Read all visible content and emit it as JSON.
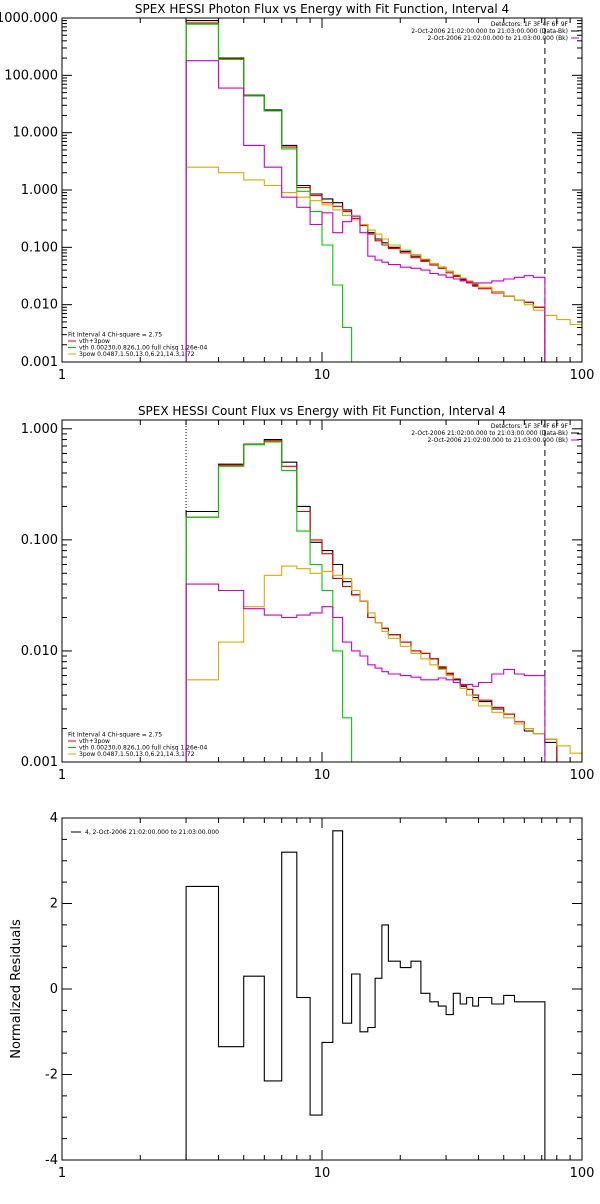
{
  "chart_data": [
    {
      "type": "line",
      "step": true,
      "log_x": true,
      "log_y": true,
      "title": "SPEX HESSI Photon Flux vs Energy with Fit Function, Interval 4",
      "xlim": [
        1,
        100
      ],
      "ylim": [
        0.001,
        1000
      ],
      "x_ticks": [
        1,
        10,
        100
      ],
      "x_tick_labels": [
        "1",
        "10",
        "100"
      ],
      "y_ticks": [
        0.001,
        0.01,
        0.1,
        1,
        10,
        100,
        1000
      ],
      "y_tick_labels": [
        "0.001",
        "0.010",
        "0.100",
        "1.000",
        "10.000",
        "100.000",
        "1000.000"
      ],
      "vlines": [
        {
          "x": 3,
          "style": "dotted"
        },
        {
          "x": 72,
          "style": "dashed"
        }
      ],
      "legend_top_right": [
        {
          "text": "Detectors: 1F 3F 4F 6F 9F",
          "color": ""
        },
        {
          "text": "2-Oct-2006 21:02:00.000 to 21:03:00.000 (Data-Bk)",
          "color": "#000000"
        },
        {
          "text": "2-Oct-2006 21:02:00.000 to 21:03:00.000 (Bk)",
          "color": "#cc00cc"
        }
      ],
      "legend_bottom_left": [
        {
          "text": "Fit Interval 4   Chi-square = 2.75",
          "color": "#000000"
        },
        {
          "text": "vth+3pow",
          "color": "#e00000"
        },
        {
          "text": "vth 0.00230,0.826,1.00  full chisq 1.26e-04",
          "color": "#00cc00"
        },
        {
          "text": "3pow 0.0487,1.50,13.0,6.21,14.3,1.72",
          "color": "#ddaa00"
        }
      ],
      "series": [
        {
          "color": "#000000",
          "edges": [
            3,
            4,
            5,
            6,
            7,
            8,
            9,
            10,
            11,
            12,
            13,
            14,
            15,
            16,
            17,
            18,
            20,
            22,
            24,
            26,
            28,
            30,
            32,
            34,
            36,
            38,
            40,
            45,
            50,
            55,
            60,
            65,
            72
          ],
          "values": [
            900,
            200,
            45,
            25,
            6,
            1.2,
            0.85,
            0.7,
            0.6,
            0.45,
            0.35,
            0.25,
            0.18,
            0.14,
            0.12,
            0.1,
            0.085,
            0.07,
            0.06,
            0.052,
            0.045,
            0.038,
            0.032,
            0.028,
            0.025,
            0.022,
            0.02,
            0.017,
            0.014,
            0.012,
            0.011,
            0.009
          ]
        },
        {
          "color": "#e00000",
          "edges": [
            3,
            4,
            5,
            6,
            7,
            8,
            9,
            10,
            11,
            12,
            13,
            14,
            15,
            16,
            17,
            18,
            20,
            22,
            24,
            26,
            28,
            30,
            32,
            34,
            36,
            38,
            40,
            45,
            50,
            55,
            60,
            65,
            72
          ],
          "values": [
            820,
            195,
            44,
            24,
            5.6,
            1.1,
            0.8,
            0.6,
            0.52,
            0.42,
            0.32,
            0.24,
            0.17,
            0.13,
            0.11,
            0.095,
            0.08,
            0.066,
            0.057,
            0.049,
            0.043,
            0.036,
            0.031,
            0.027,
            0.024,
            0.021,
            0.019,
            0.016,
            0.014,
            0.012,
            0.011,
            0.009
          ]
        },
        {
          "color": "#00cc00",
          "edges": [
            3,
            4,
            5,
            6,
            7,
            8,
            9,
            10,
            11,
            12,
            13,
            14
          ],
          "values": [
            780,
            190,
            44,
            24,
            5.2,
            0.95,
            0.42,
            0.11,
            0.022,
            0.004,
            0.001
          ]
        },
        {
          "color": "#ddaa00",
          "edges": [
            3,
            4,
            5,
            6,
            7,
            8,
            9,
            10,
            11,
            12,
            13,
            14,
            15,
            16,
            17,
            18,
            20,
            22,
            24,
            26,
            28,
            30,
            32,
            34,
            36,
            38,
            40,
            45,
            50,
            55,
            60,
            65,
            72,
            80,
            90,
            100
          ],
          "values": [
            2.5,
            2.0,
            1.5,
            1.2,
            0.9,
            0.75,
            0.65,
            0.55,
            0.45,
            0.36,
            0.3,
            0.25,
            0.2,
            0.17,
            0.14,
            0.11,
            0.09,
            0.075,
            0.062,
            0.052,
            0.045,
            0.038,
            0.033,
            0.029,
            0.026,
            0.023,
            0.02,
            0.017,
            0.014,
            0.012,
            0.01,
            0.008,
            0.0065,
            0.0055,
            0.0045
          ]
        },
        {
          "color": "#cc00cc",
          "edges": [
            3,
            4,
            5,
            6,
            7,
            8,
            9,
            10,
            11,
            12,
            13,
            14,
            15,
            16,
            17,
            18,
            20,
            22,
            24,
            26,
            28,
            30,
            32,
            34,
            36,
            38,
            40,
            45,
            50,
            55,
            60,
            65,
            72
          ],
          "values": [
            180,
            60,
            6,
            2.5,
            0.75,
            0.5,
            0.25,
            0.4,
            0.18,
            0.28,
            0.35,
            0.18,
            0.07,
            0.06,
            0.055,
            0.05,
            0.045,
            0.043,
            0.04,
            0.035,
            0.033,
            0.03,
            0.028,
            0.026,
            0.025,
            0.024,
            0.024,
            0.026,
            0.028,
            0.03,
            0.032,
            0.03
          ]
        }
      ]
    },
    {
      "type": "line",
      "step": true,
      "log_x": true,
      "log_y": true,
      "title": "SPEX HESSI Count Flux vs Energy with Fit Function, Interval 4",
      "xlim": [
        1,
        100
      ],
      "ylim": [
        0.001,
        1.2
      ],
      "x_ticks": [
        1,
        10,
        100
      ],
      "x_tick_labels": [
        "1",
        "10",
        "100"
      ],
      "y_ticks": [
        0.001,
        0.01,
        0.1,
        1
      ],
      "y_tick_labels": [
        "0.001",
        "0.010",
        "0.100",
        "1.000"
      ],
      "vlines": [
        {
          "x": 3,
          "style": "dotted"
        },
        {
          "x": 72,
          "style": "dashed"
        }
      ],
      "legend_top_right": [
        {
          "text": "Detectors: 1F 3F 4F 6F 9F",
          "color": ""
        },
        {
          "text": "2-Oct-2006 21:02:00.000 to 21:03:00.000 (Data-Bk)",
          "color": "#000000"
        },
        {
          "text": "2-Oct-2006 21:02:00.000 to 21:03:00.000 (Bk)",
          "color": "#cc00cc"
        }
      ],
      "legend_bottom_left": [
        {
          "text": "Fit Interval 4   Chi-square = 2.75",
          "color": "#000000"
        },
        {
          "text": "vth+3pow",
          "color": "#e00000"
        },
        {
          "text": "vth 0.00230,0.826,1.00  full chisq 1.26e-04",
          "color": "#00cc00"
        },
        {
          "text": "3pow 0.0487,1.50,13.0,6.21,14.3,1.72",
          "color": "#ddaa00"
        }
      ],
      "series": [
        {
          "color": "#000000",
          "edges": [
            3,
            4,
            5,
            6,
            7,
            8,
            9,
            10,
            11,
            12,
            13,
            14,
            15,
            16,
            17,
            18,
            20,
            22,
            24,
            26,
            28,
            30,
            32,
            34,
            36,
            38,
            40,
            45,
            50,
            55,
            60,
            65,
            72,
            80
          ],
          "values": [
            0.18,
            0.48,
            0.72,
            0.8,
            0.5,
            0.2,
            0.095,
            0.08,
            0.06,
            0.042,
            0.032,
            0.028,
            0.02,
            0.018,
            0.016,
            0.014,
            0.012,
            0.01,
            0.0095,
            0.0085,
            0.007,
            0.0062,
            0.0055,
            0.0048,
            0.0045,
            0.0038,
            0.0035,
            0.003,
            0.0027,
            0.0022,
            0.0019,
            0.0018,
            0.0015
          ]
        },
        {
          "color": "#e00000",
          "edges": [
            3,
            4,
            5,
            6,
            7,
            8,
            9,
            10,
            11,
            12,
            13,
            14,
            15,
            16,
            17,
            18,
            20,
            22,
            24,
            26,
            28,
            30,
            32,
            34,
            36,
            38,
            40,
            45,
            50,
            55,
            60,
            65,
            72,
            80
          ],
          "values": [
            0.16,
            0.47,
            0.73,
            0.78,
            0.46,
            0.18,
            0.1,
            0.075,
            0.045,
            0.038,
            0.032,
            0.028,
            0.02,
            0.018,
            0.016,
            0.014,
            0.012,
            0.01,
            0.0095,
            0.0085,
            0.0072,
            0.0063,
            0.0056,
            0.0049,
            0.0045,
            0.004,
            0.0036,
            0.0031,
            0.0027,
            0.0023,
            0.002,
            0.0018,
            0.0016
          ]
        },
        {
          "color": "#00cc00",
          "edges": [
            3,
            4,
            5,
            6,
            7,
            8,
            9,
            10,
            11,
            12,
            13
          ],
          "values": [
            0.16,
            0.46,
            0.72,
            0.76,
            0.42,
            0.12,
            0.06,
            0.035,
            0.01,
            0.0025
          ]
        },
        {
          "color": "#ddaa00",
          "edges": [
            3,
            4,
            5,
            6,
            7,
            8,
            9,
            10,
            11,
            12,
            13,
            14,
            15,
            16,
            17,
            18,
            20,
            22,
            24,
            26,
            28,
            30,
            32,
            34,
            36,
            38,
            40,
            45,
            50,
            55,
            60,
            65,
            72,
            80,
            90,
            100
          ],
          "values": [
            0.0055,
            0.012,
            0.025,
            0.048,
            0.058,
            0.055,
            0.05,
            0.052,
            0.048,
            0.045,
            0.035,
            0.028,
            0.022,
            0.018,
            0.015,
            0.013,
            0.011,
            0.0095,
            0.0085,
            0.0075,
            0.0068,
            0.006,
            0.0052,
            0.0046,
            0.004,
            0.0036,
            0.0032,
            0.0028,
            0.0025,
            0.0022,
            0.002,
            0.0018,
            0.0016,
            0.0014,
            0.0012
          ]
        },
        {
          "color": "#cc00cc",
          "edges": [
            3,
            4,
            5,
            6,
            7,
            8,
            9,
            10,
            11,
            12,
            13,
            14,
            15,
            16,
            17,
            18,
            20,
            22,
            24,
            26,
            28,
            30,
            32,
            34,
            36,
            38,
            40,
            45,
            50,
            55,
            60,
            65,
            72
          ],
          "values": [
            0.04,
            0.035,
            0.024,
            0.021,
            0.02,
            0.021,
            0.022,
            0.025,
            0.02,
            0.012,
            0.01,
            0.009,
            0.0075,
            0.007,
            0.0065,
            0.0062,
            0.006,
            0.0058,
            0.0055,
            0.0055,
            0.0057,
            0.0055,
            0.0052,
            0.005,
            0.005,
            0.0048,
            0.0052,
            0.0062,
            0.0068,
            0.0062,
            0.006,
            0.006
          ]
        }
      ]
    },
    {
      "type": "line",
      "step": true,
      "log_x": true,
      "log_y": false,
      "title": "",
      "ylabel": "Normalized Residuals",
      "xlim": [
        1,
        100
      ],
      "ylim": [
        -4,
        4
      ],
      "x_ticks": [
        1,
        10,
        100
      ],
      "x_tick_labels": [
        "1",
        "10",
        "100"
      ],
      "y_ticks": [
        -4,
        -2,
        0,
        2,
        4
      ],
      "y_tick_labels": [
        "-4",
        "-2",
        "0",
        "2",
        "4"
      ],
      "legend": [
        {
          "text": "4,  2-Oct-2006 21:02:00.000 to 21:03:00.000",
          "color": "#000000"
        }
      ],
      "series": [
        {
          "color": "#000000",
          "edges": [
            3,
            4,
            5,
            6,
            7,
            8,
            9,
            10,
            11,
            12,
            13,
            14,
            15,
            16,
            17,
            18,
            20,
            22,
            24,
            26,
            28,
            30,
            32,
            34,
            36,
            38,
            40,
            45,
            50,
            55,
            60,
            65,
            72
          ],
          "values": [
            2.4,
            -1.35,
            0.3,
            -2.15,
            3.2,
            -0.2,
            -2.95,
            -1.25,
            3.7,
            -0.8,
            0.35,
            -1.0,
            -0.9,
            0.25,
            1.5,
            0.65,
            0.5,
            0.65,
            -0.1,
            -0.3,
            -0.4,
            -0.6,
            -0.1,
            -0.35,
            -0.2,
            -0.4,
            -0.2,
            -0.35,
            -0.15,
            -0.3,
            -0.3,
            -0.3
          ]
        }
      ]
    }
  ]
}
